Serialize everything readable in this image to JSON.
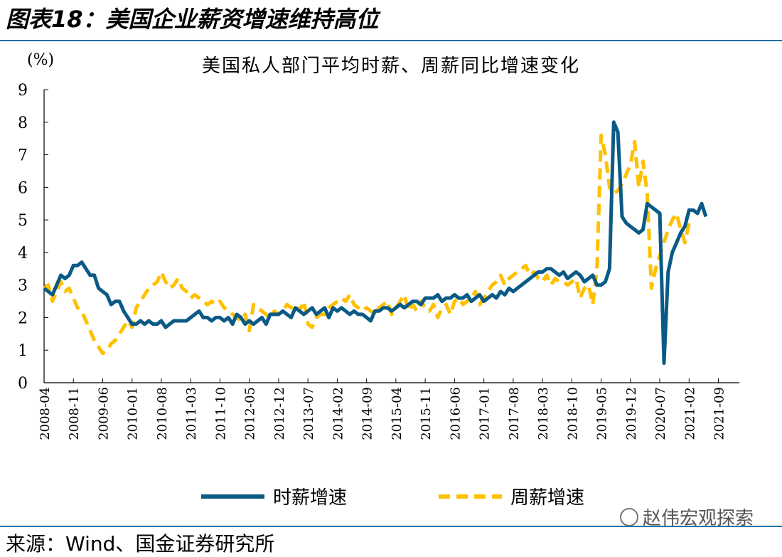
{
  "figure_title": "图表18：美国企业薪资增速维持高位",
  "source": "来源：Wind、国金证券研究所",
  "watermark": "赵伟宏观探索",
  "colors": {
    "hourly": "#0b5a85",
    "weekly": "#ffc000",
    "rule": "#1f6fa8"
  },
  "chart_data": {
    "type": "line",
    "title": "美国私人部门平均时薪、周薪同比增速变化",
    "unit": "(%)",
    "ylim": [
      0,
      9
    ],
    "yticks": [
      0,
      1,
      2,
      3,
      4,
      5,
      6,
      7,
      8,
      9
    ],
    "x_start": "2008-04",
    "x_end": "2022-02",
    "xticks": [
      "2008-04",
      "2008-11",
      "2009-06",
      "2010-01",
      "2010-08",
      "2011-03",
      "2011-10",
      "2012-05",
      "2012-12",
      "2013-07",
      "2014-02",
      "2014-09",
      "2015-04",
      "2015-11",
      "2016-06",
      "2017-01",
      "2017-08",
      "2018-03",
      "2018-10",
      "2019-05",
      "2019-12",
      "2020-07",
      "2021-02",
      "2021-09"
    ],
    "legend": [
      "时薪增速",
      "周薪增速"
    ],
    "series": [
      {
        "name": "时薪增速",
        "style": "solid",
        "values": [
          2.9,
          2.8,
          2.7,
          3.0,
          3.3,
          3.2,
          3.3,
          3.6,
          3.6,
          3.7,
          3.5,
          3.3,
          3.3,
          2.9,
          2.8,
          2.7,
          2.4,
          2.5,
          2.5,
          2.2,
          2.0,
          1.8,
          1.8,
          1.9,
          1.8,
          1.9,
          1.8,
          1.8,
          1.9,
          1.7,
          1.8,
          1.9,
          1.9,
          1.9,
          1.9,
          2.0,
          2.1,
          2.2,
          2.0,
          2.0,
          1.9,
          2.0,
          2.0,
          1.9,
          2.0,
          1.8,
          2.1,
          2.0,
          1.8,
          1.9,
          1.8,
          1.9,
          2.0,
          1.8,
          2.1,
          2.1,
          2.1,
          2.2,
          2.1,
          2.0,
          2.3,
          2.2,
          2.1,
          2.2,
          2.3,
          2.1,
          2.2,
          2.3,
          2.0,
          2.3,
          2.2,
          2.3,
          2.2,
          2.1,
          2.2,
          2.1,
          2.1,
          2.0,
          1.9,
          2.2,
          2.2,
          2.3,
          2.3,
          2.2,
          2.3,
          2.4,
          2.3,
          2.4,
          2.5,
          2.5,
          2.4,
          2.6,
          2.6,
          2.6,
          2.7,
          2.5,
          2.6,
          2.6,
          2.7,
          2.6,
          2.6,
          2.7,
          2.5,
          2.6,
          2.7,
          2.5,
          2.6,
          2.7,
          2.6,
          2.8,
          2.7,
          2.9,
          2.8,
          2.9,
          3.0,
          3.1,
          3.2,
          3.3,
          3.4,
          3.4,
          3.5,
          3.5,
          3.4,
          3.3,
          3.4,
          3.2,
          3.3,
          3.4,
          3.3,
          3.1,
          3.2,
          3.3,
          3.0,
          3.0,
          3.1,
          3.5,
          8.0,
          7.7,
          5.1,
          4.9,
          4.8,
          4.7,
          4.6,
          4.7,
          5.5,
          5.4,
          5.3,
          5.2,
          0.6,
          3.4,
          4.0,
          4.3,
          4.6,
          4.8,
          5.3,
          5.3,
          5.2,
          5.5,
          5.1
        ]
      },
      {
        "name": "周薪增速",
        "style": "dashed",
        "values": [
          2.9,
          3.0,
          2.5,
          2.8,
          3.1,
          2.8,
          2.9,
          2.6,
          2.3,
          2.2,
          1.9,
          1.6,
          1.3,
          1.1,
          0.9,
          1.0,
          1.2,
          1.3,
          1.5,
          1.7,
          1.9,
          1.7,
          2.3,
          2.5,
          2.7,
          2.9,
          3.0,
          3.1,
          3.4,
          3.1,
          2.9,
          3.0,
          3.2,
          2.9,
          2.8,
          2.6,
          2.7,
          2.6,
          2.5,
          2.4,
          2.5,
          2.4,
          2.5,
          2.3,
          2.2,
          2.1,
          2.0,
          1.9,
          2.1,
          1.6,
          2.4,
          2.3,
          2.2,
          2.1,
          2.0,
          2.2,
          2.1,
          2.2,
          2.4,
          2.3,
          2.4,
          2.2,
          2.5,
          1.8,
          1.7,
          2.0,
          2.1,
          2.1,
          2.3,
          2.4,
          2.5,
          2.6,
          2.5,
          2.7,
          2.4,
          2.3,
          2.2,
          2.3,
          2.2,
          2.1,
          2.3,
          2.4,
          2.5,
          2.1,
          2.3,
          2.5,
          2.7,
          2.2,
          2.4,
          2.2,
          2.5,
          2.3,
          2.2,
          2.4,
          2.0,
          2.3,
          2.4,
          2.1,
          2.5,
          2.6,
          2.4,
          2.5,
          2.6,
          2.8,
          2.4,
          2.6,
          2.8,
          3.0,
          3.1,
          3.3,
          3.0,
          3.2,
          3.3,
          3.4,
          3.5,
          3.6,
          3.3,
          3.4,
          3.2,
          3.1,
          3.3,
          3.0,
          3.2,
          3.1,
          3.1,
          3.0,
          3.1,
          3.2,
          2.6,
          2.9,
          3.0,
          2.4,
          3.5,
          7.6,
          7.0,
          6.0,
          5.8,
          5.9,
          6.1,
          6.4,
          6.7,
          7.4,
          6.0,
          6.8,
          5.8,
          2.9,
          3.5,
          3.9,
          4.3,
          4.7,
          5.0,
          5.2,
          4.7,
          4.3,
          4.9
        ]
      }
    ]
  }
}
